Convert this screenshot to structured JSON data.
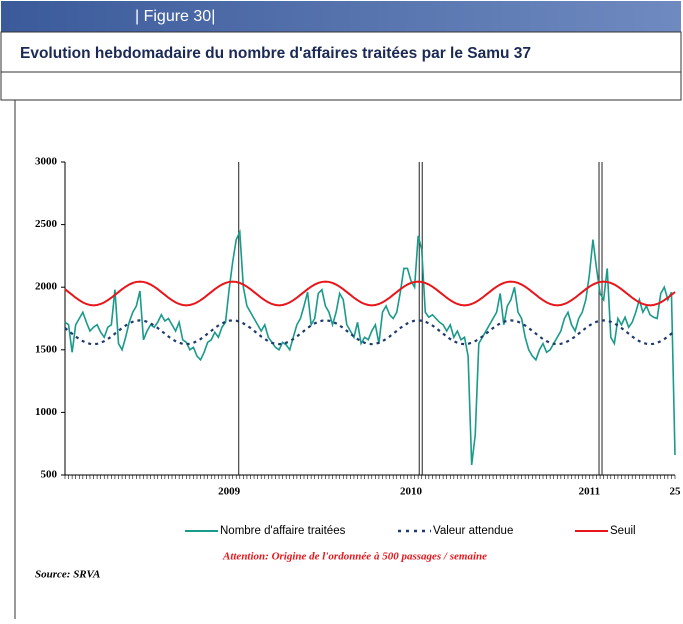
{
  "header": {
    "label": "| Figure 30|"
  },
  "chart_data": {
    "type": "line",
    "title": "Evolution hebdomadaire du nombre d'affaires traitées par le Samu 37",
    "annotation": "Attention: Origine de l'ordonnée à 500 passages / semaine",
    "source": "Source: SRVA",
    "categories": [
      null,
      null,
      null,
      null,
      null,
      null,
      null,
      null,
      null,
      null,
      null,
      null,
      null,
      null,
      null,
      null,
      null,
      null,
      null,
      null,
      null,
      null,
      null,
      null,
      null,
      null,
      null,
      null,
      null,
      null,
      null,
      null,
      null,
      null,
      null,
      null,
      null,
      null,
      null,
      null,
      null,
      null,
      null,
      null,
      null,
      null,
      "2009",
      null,
      null,
      null,
      null,
      null,
      null,
      null,
      null,
      null,
      null,
      null,
      null,
      null,
      null,
      null,
      null,
      null,
      null,
      null,
      null,
      null,
      null,
      null,
      null,
      null,
      null,
      null,
      null,
      null,
      null,
      null,
      null,
      null,
      null,
      null,
      null,
      null,
      null,
      null,
      null,
      null,
      null,
      null,
      null,
      null,
      null,
      null,
      null,
      null,
      null,
      "2010",
      null,
      null,
      null,
      null,
      null,
      null,
      null,
      null,
      null,
      null,
      null,
      null,
      null,
      null,
      null,
      null,
      null,
      null,
      null,
      null,
      null,
      null,
      null,
      null,
      null,
      null,
      null,
      null,
      null,
      null,
      null,
      null,
      null,
      null,
      null,
      null,
      null,
      null,
      null,
      null,
      null,
      null,
      null,
      null,
      null,
      null,
      null,
      null,
      null,
      "2011",
      null,
      null,
      null,
      null,
      null,
      null,
      null,
      null,
      null,
      null,
      null,
      null,
      null,
      null,
      null,
      null,
      null,
      null,
      null,
      null,
      null,
      null,
      null,
      "25"
    ],
    "ylim": [
      500,
      3000
    ],
    "yticks": [
      500,
      1000,
      1500,
      2000,
      2500,
      3000
    ],
    "grid": false,
    "series": [
      {
        "name": "Nombre d'affaire traitées",
        "color": "#1a9a8a",
        "style": "solid",
        "values": [
          1720,
          1700,
          1480,
          1700,
          1750,
          1800,
          1720,
          1650,
          1680,
          1700,
          1640,
          1600,
          1680,
          1700,
          1980,
          1550,
          1500,
          1600,
          1720,
          1800,
          1850,
          1970,
          1580,
          1650,
          1700,
          1680,
          1720,
          1780,
          1730,
          1750,
          1700,
          1650,
          1720,
          1580,
          1560,
          1500,
          1520,
          1450,
          1420,
          1480,
          1560,
          1580,
          1640,
          1600,
          1680,
          1720,
          1980,
          2200,
          2380,
          2440,
          2000,
          1850,
          1800,
          1750,
          1700,
          1650,
          1700,
          1600,
          1560,
          1520,
          1500,
          1560,
          1540,
          1500,
          1600,
          1700,
          1750,
          1850,
          1960,
          1700,
          1750,
          1950,
          1980,
          1850,
          1800,
          1700,
          1800,
          1950,
          1900,
          1700,
          1650,
          1600,
          1720,
          1550,
          1600,
          1580,
          1650,
          1700,
          1550,
          1800,
          1850,
          1780,
          1750,
          1800,
          1960,
          2150,
          2150,
          2050,
          2000,
          2410,
          2300,
          1800,
          1760,
          1780,
          1750,
          1720,
          1700,
          1650,
          1700,
          1600,
          1650,
          1580,
          1600,
          1450,
          580,
          820,
          1550,
          1600,
          1650,
          1700,
          1750,
          1800,
          1950,
          1700,
          1850,
          1900,
          2000,
          1800,
          1750,
          1600,
          1500,
          1450,
          1420,
          1500,
          1550,
          1480,
          1500,
          1550,
          1600,
          1650,
          1750,
          1800,
          1700,
          1650,
          1750,
          1800,
          1900,
          2100,
          2380,
          2150,
          1950,
          1900,
          2150,
          1600,
          1550,
          1750,
          1700,
          1760,
          1680,
          1720,
          1800,
          1900,
          1800,
          1850,
          1780,
          1760,
          1750,
          1950,
          2000,
          1900,
          1960,
          660
        ]
      },
      {
        "name": "Valeur attendue",
        "color": "#1f3a6e",
        "style": "dotted",
        "values": [
          1674,
          1651,
          1629,
          1606,
          1586,
          1569,
          1556,
          1548,
          1545,
          1548,
          1556,
          1569,
          1586,
          1606,
          1629,
          1651,
          1674,
          1694,
          1711,
          1724,
          1732,
          1735,
          1732,
          1724,
          1711,
          1694,
          1674,
          1651,
          1629,
          1606,
          1586,
          1569,
          1556,
          1548,
          1545,
          1548,
          1556,
          1569,
          1586,
          1606,
          1629,
          1651,
          1674,
          1694,
          1711,
          1724,
          1732,
          1735,
          1732,
          1724,
          1711,
          1694,
          1674,
          1651,
          1629,
          1606,
          1586,
          1569,
          1556,
          1548,
          1545,
          1548,
          1556,
          1569,
          1586,
          1606,
          1629,
          1651,
          1674,
          1694,
          1711,
          1724,
          1732,
          1735,
          1732,
          1724,
          1711,
          1694,
          1674,
          1651,
          1629,
          1606,
          1586,
          1569,
          1556,
          1548,
          1545,
          1548,
          1556,
          1569,
          1586,
          1606,
          1629,
          1651,
          1674,
          1694,
          1711,
          1724,
          1732,
          1735,
          1732,
          1724,
          1711,
          1694,
          1674,
          1651,
          1629,
          1606,
          1586,
          1569,
          1556,
          1548,
          1545,
          1548,
          1556,
          1569,
          1586,
          1606,
          1629,
          1651,
          1674,
          1694,
          1711,
          1724,
          1732,
          1735,
          1732,
          1724,
          1711,
          1694,
          1674,
          1651,
          1629,
          1606,
          1586,
          1569,
          1556,
          1548,
          1545,
          1548,
          1556,
          1569,
          1586,
          1606,
          1629,
          1651,
          1674,
          1694,
          1711,
          1724,
          1732,
          1735,
          1732,
          1724,
          1711,
          1694,
          1674,
          1651,
          1629,
          1606,
          1586,
          1569,
          1556,
          1548,
          1545,
          1548,
          1556,
          1569,
          1586,
          1606,
          1629,
          1651
        ]
      },
      {
        "name": "Seuil",
        "color": "#e8161b",
        "style": "solid",
        "values": [
          1984,
          1961,
          1939,
          1916,
          1896,
          1879,
          1866,
          1858,
          1855,
          1858,
          1866,
          1879,
          1896,
          1916,
          1939,
          1961,
          1984,
          2004,
          2021,
          2034,
          2042,
          2045,
          2042,
          2034,
          2021,
          2004,
          1984,
          1961,
          1939,
          1916,
          1896,
          1879,
          1866,
          1858,
          1855,
          1858,
          1866,
          1879,
          1896,
          1916,
          1939,
          1961,
          1984,
          2004,
          2021,
          2034,
          2042,
          2045,
          2042,
          2034,
          2021,
          2004,
          1984,
          1961,
          1939,
          1916,
          1896,
          1879,
          1866,
          1858,
          1855,
          1858,
          1866,
          1879,
          1896,
          1916,
          1939,
          1961,
          1984,
          2004,
          2021,
          2034,
          2042,
          2045,
          2042,
          2034,
          2021,
          2004,
          1984,
          1961,
          1939,
          1916,
          1896,
          1879,
          1866,
          1858,
          1855,
          1858,
          1866,
          1879,
          1896,
          1916,
          1939,
          1961,
          1984,
          2004,
          2021,
          2034,
          2042,
          2045,
          2042,
          2034,
          2021,
          2004,
          1984,
          1961,
          1939,
          1916,
          1896,
          1879,
          1866,
          1858,
          1855,
          1858,
          1866,
          1879,
          1896,
          1916,
          1939,
          1961,
          1984,
          2004,
          2021,
          2034,
          2042,
          2045,
          2042,
          2034,
          2021,
          2004,
          1984,
          1961,
          1939,
          1916,
          1896,
          1879,
          1866,
          1858,
          1855,
          1858,
          1866,
          1879,
          1896,
          1916,
          1939,
          1961,
          1984,
          2004,
          2021,
          2034,
          2042,
          2045,
          2042,
          2034,
          2021,
          2004,
          1984,
          1961,
          1939,
          1916,
          1896,
          1879,
          1866,
          1858,
          1855,
          1858,
          1866,
          1879,
          1896,
          1916,
          1939,
          1961
        ]
      }
    ]
  }
}
